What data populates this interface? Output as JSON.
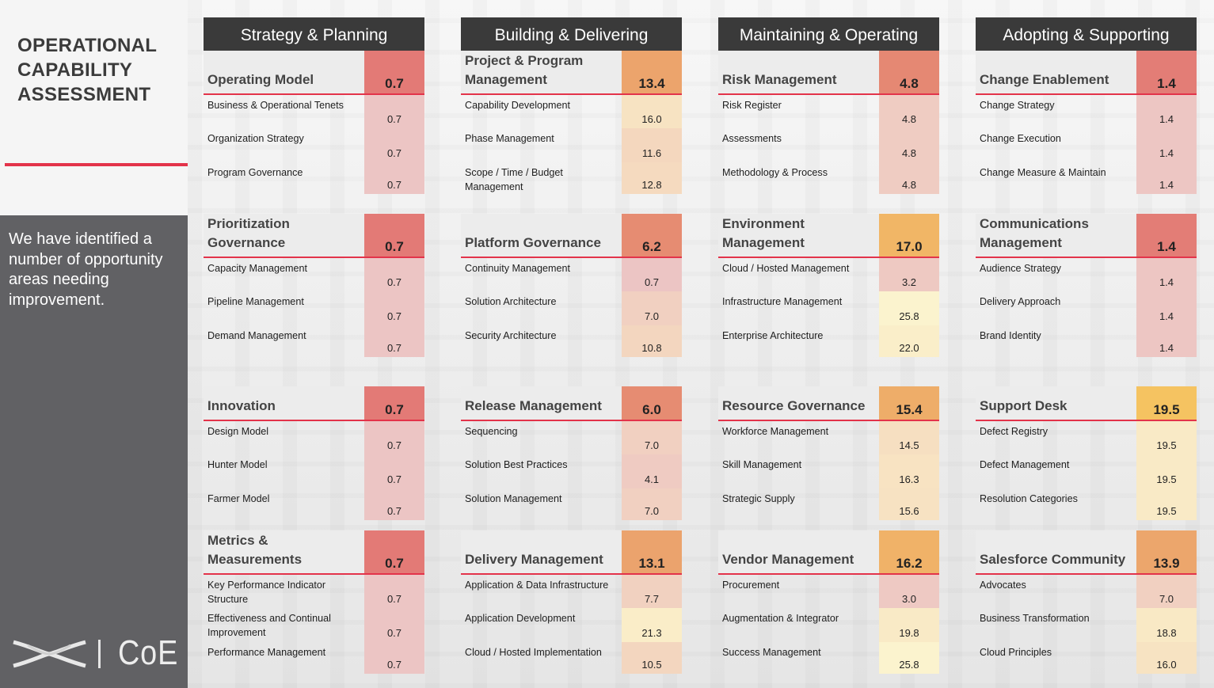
{
  "title": "OPERATIONAL CAPABILITY ASSESSMENT",
  "intro": "We have identified a number of opportunity areas needing improvement.",
  "logo_text": "CoE",
  "columns": [
    {
      "header": "Strategy & Planning",
      "cards": [
        {
          "title": "Operating Model",
          "score": "0.7",
          "items": [
            {
              "label": "Business & Operational Tenets",
              "value": "0.7"
            },
            {
              "label": "Organization Strategy",
              "value": "0.7"
            },
            {
              "label": "Program Governance",
              "value": "0.7"
            }
          ]
        },
        {
          "title": "Prioritization Governance",
          "score": "0.7",
          "items": [
            {
              "label": "Capacity Management",
              "value": "0.7"
            },
            {
              "label": "Pipeline Management",
              "value": "0.7"
            },
            {
              "label": "Demand Management",
              "value": "0.7"
            }
          ]
        },
        {
          "title": "Innovation",
          "score": "0.7",
          "items": [
            {
              "label": "Design Model",
              "value": "0.7"
            },
            {
              "label": "Hunter Model",
              "value": "0.7"
            },
            {
              "label": "Farmer Model",
              "value": "0.7"
            }
          ]
        },
        {
          "title": "Metrics & Measurements",
          "score": "0.7",
          "items": [
            {
              "label": "Key Performance Indicator Structure",
              "value": "0.7"
            },
            {
              "label": "Effectiveness and Continual Improvement",
              "value": "0.7"
            },
            {
              "label": "Performance Management",
              "value": "0.7"
            }
          ]
        }
      ]
    },
    {
      "header": "Building & Delivering",
      "cards": [
        {
          "title": "Project & Program Management",
          "score": "13.4",
          "items": [
            {
              "label": "Capability Development",
              "value": "16.0"
            },
            {
              "label": "Phase Management",
              "value": "11.6"
            },
            {
              "label": "Scope / Time / Budget Management",
              "value": "12.8"
            }
          ]
        },
        {
          "title": "Platform Governance",
          "score": "6.2",
          "items": [
            {
              "label": "Continuity Management",
              "value": "0.7"
            },
            {
              "label": "Solution Architecture",
              "value": "7.0"
            },
            {
              "label": "Security Architecture",
              "value": "10.8"
            }
          ]
        },
        {
          "title": "Release Management",
          "score": "6.0",
          "items": [
            {
              "label": "Sequencing",
              "value": "7.0"
            },
            {
              "label": "Solution Best Practices",
              "value": "4.1"
            },
            {
              "label": "Solution Management",
              "value": "7.0"
            }
          ]
        },
        {
          "title": "Delivery Management",
          "score": "13.1",
          "items": [
            {
              "label": "Application & Data Infrastructure",
              "value": "7.7"
            },
            {
              "label": "Application Development",
              "value": "21.3"
            },
            {
              "label": "Cloud / Hosted Implementation",
              "value": "10.5"
            }
          ]
        }
      ]
    },
    {
      "header": "Maintaining & Operating",
      "cards": [
        {
          "title": "Risk Management",
          "score": "4.8",
          "items": [
            {
              "label": "Risk Register",
              "value": "4.8"
            },
            {
              "label": "Assessments",
              "value": "4.8"
            },
            {
              "label": "Methodology & Process",
              "value": "4.8"
            }
          ]
        },
        {
          "title": "Environment Management",
          "score": "17.0",
          "items": [
            {
              "label": "Cloud / Hosted Management",
              "value": "3.2"
            },
            {
              "label": "Infrastructure Management",
              "value": "25.8"
            },
            {
              "label": "Enterprise Architecture",
              "value": "22.0"
            }
          ]
        },
        {
          "title": "Resource Governance",
          "score": "15.4",
          "items": [
            {
              "label": "Workforce Management",
              "value": "14.5"
            },
            {
              "label": "Skill Management",
              "value": "16.3"
            },
            {
              "label": "Strategic Supply",
              "value": "15.6"
            }
          ]
        },
        {
          "title": "Vendor Management",
          "score": "16.2",
          "items": [
            {
              "label": "Procurement",
              "value": "3.0"
            },
            {
              "label": "Augmentation & Integrator",
              "value": "19.8"
            },
            {
              "label": "Success Management",
              "value": "25.8"
            }
          ]
        }
      ]
    },
    {
      "header": "Adopting & Supporting",
      "cards": [
        {
          "title": "Change Enablement",
          "score": "1.4",
          "items": [
            {
              "label": "Change Strategy",
              "value": "1.4"
            },
            {
              "label": "Change Execution",
              "value": "1.4"
            },
            {
              "label": "Change Measure & Maintain",
              "value": "1.4"
            }
          ]
        },
        {
          "title": "Communications Management",
          "score": "1.4",
          "items": [
            {
              "label": "Audience Strategy",
              "value": "1.4"
            },
            {
              "label": "Delivery Approach",
              "value": "1.4"
            },
            {
              "label": "Brand Identity",
              "value": "1.4"
            }
          ]
        },
        {
          "title": "Support Desk",
          "score": "19.5",
          "items": [
            {
              "label": "Defect Registry",
              "value": "19.5"
            },
            {
              "label": "Defect Management",
              "value": "19.5"
            },
            {
              "label": "Resolution Categories",
              "value": "19.5"
            }
          ]
        },
        {
          "title": "Salesforce Community",
          "score": "13.9",
          "items": [
            {
              "label": "Advocates",
              "value": "7.0"
            },
            {
              "label": "Business Transformation",
              "value": "18.8"
            },
            {
              "label": "Cloud Principles",
              "value": "16.0"
            }
          ]
        }
      ]
    }
  ]
}
